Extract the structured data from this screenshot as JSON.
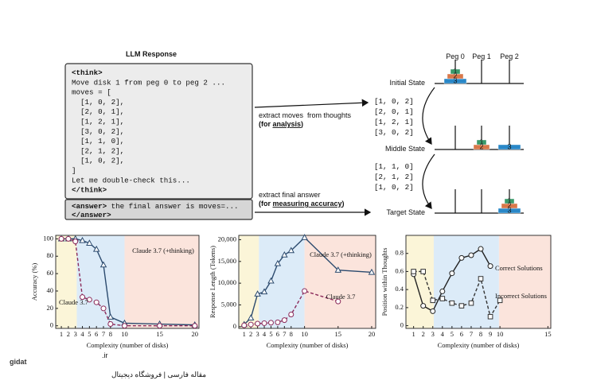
{
  "diagram": {
    "panel_title": "LLM Response",
    "code_lines": [
      {
        "text": "<think>",
        "color": "#111111",
        "bold": true
      },
      {
        "text": "Move disk 1 from peg 0 to peg 2 ...",
        "color": "#111111",
        "bold": false
      },
      {
        "text": "moves = [",
        "color": "#111111",
        "bold": false
      },
      {
        "text": "  [1, 0, 2],",
        "color": "#2e9a4a",
        "bold": false
      },
      {
        "text": "  [2, 0, 1],",
        "color": "#c8324a",
        "bold": false
      },
      {
        "text": "  [1, 2, 1],",
        "color": "#2a6fc8",
        "bold": false
      },
      {
        "text": "  [3, 0, 2],",
        "color": "#c8781e",
        "bold": false
      },
      {
        "text": "  [1, 1, 0],",
        "color": "#2a8ac8",
        "bold": false
      },
      {
        "text": "  [2, 1, 2],",
        "color": "#8a3ac0",
        "bold": false
      },
      {
        "text": "  [1, 0, 2],",
        "color": "#2e9a4a",
        "bold": false
      },
      {
        "text": "]",
        "color": "#111111",
        "bold": false
      },
      {
        "text": "Let me double-check this...",
        "color": "#111111",
        "bold": false
      },
      {
        "text": "</think>",
        "color": "#111111",
        "bold": true
      }
    ],
    "answer_lines": [
      [
        "<answer>",
        " the final answer is moves=..."
      ],
      [
        "</answer>"
      ]
    ],
    "extract_thoughts": {
      "line1": "extract moves  from thoughts",
      "line2": [
        "(for ",
        "analysis",
        ")"
      ]
    },
    "extract_answer": {
      "line1": "extract final answer",
      "line2": [
        "(for ",
        "measuring accuracy",
        ")"
      ]
    },
    "move_groups": [
      [
        {
          "text": "[1, 0, 2]",
          "color": "#2e9a4a"
        },
        {
          "text": "[2, 0, 1]",
          "color": "#c8324a"
        },
        {
          "text": "[1, 2, 1]",
          "color": "#2a6fc8"
        },
        {
          "text": "[3, 0, 2]",
          "color": "#c8781e"
        }
      ],
      [
        {
          "text": "[1, 1, 0]",
          "color": "#2a8ac8"
        },
        {
          "text": "[2, 1, 2]",
          "color": "#8a3ac0"
        },
        {
          "text": "[1, 0, 2]",
          "color": "#2e9a4a"
        }
      ]
    ],
    "pegs": [
      "Peg 0",
      "Peg 1",
      "Peg 2"
    ],
    "disk_colors": {
      "1": "#3a9a6a",
      "2": "#d8784a",
      "3": "#2a88c8"
    },
    "states": [
      {
        "label": "Initial State",
        "pegs": [
          [
            "3",
            "2",
            "1"
          ],
          [],
          []
        ]
      },
      {
        "label": "Middle State",
        "pegs": [
          [],
          [
            "2",
            "1"
          ],
          [
            "3"
          ]
        ]
      },
      {
        "label": "Target State",
        "pegs": [
          [],
          [],
          [
            "3",
            "2",
            "1"
          ]
        ]
      }
    ]
  },
  "chart_data": [
    {
      "type": "line",
      "xlabel": "Complexity (number of disks)",
      "ylabel": "Accuracy (%)",
      "x": [
        1,
        2,
        3,
        4,
        5,
        6,
        7,
        8,
        10,
        15,
        20
      ],
      "xlim": [
        0.2,
        20.6
      ],
      "xticks": [
        1,
        2,
        3,
        4,
        5,
        6,
        7,
        8,
        10,
        15,
        20
      ],
      "ylim": [
        -3,
        104
      ],
      "yticks": [
        0,
        20,
        40,
        60,
        80,
        100
      ],
      "regions": [
        {
          "xlim": [
            0.2,
            3.2
          ],
          "color": "#fbf5d8"
        },
        {
          "xlim": [
            3.2,
            10
          ],
          "color": "#dcebf8"
        },
        {
          "xlim": [
            10,
            20.6
          ],
          "color": "#fbe4dc"
        }
      ],
      "series": [
        {
          "name": "Claude 3.7 (+thinking)",
          "color": "#2b4a6e",
          "marker": "triangle",
          "dashed": false,
          "values": [
            100,
            100,
            100,
            98,
            95,
            88,
            70,
            10,
            3,
            2,
            1
          ]
        },
        {
          "name": "Claude 3.7",
          "color": "#8b2a5a",
          "marker": "circle",
          "dashed": true,
          "values": [
            100,
            100,
            97,
            33,
            30,
            27,
            20,
            2,
            0,
            0,
            0
          ]
        }
      ]
    },
    {
      "type": "line",
      "xlabel": "Complexity (number of disks)",
      "ylabel": "Response Length (Tokens)",
      "x": [
        1,
        2,
        3,
        4,
        5,
        6,
        7,
        8,
        10,
        15,
        20
      ],
      "xlim": [
        0.2,
        20.6
      ],
      "xticks": [
        1,
        2,
        3,
        4,
        5,
        6,
        7,
        8,
        10,
        15,
        20
      ],
      "ylim": [
        -400,
        21000
      ],
      "yticks": [
        0,
        {
          "value": 5000,
          "label": "5,000"
        },
        {
          "value": 10000,
          "label": "10,000"
        },
        {
          "value": 15000,
          "label": "15,000"
        },
        {
          "value": 20000,
          "label": "20,000"
        }
      ],
      "regions": [
        {
          "xlim": [
            0.2,
            3.2
          ],
          "color": "#fbf5d8"
        },
        {
          "xlim": [
            3.2,
            10
          ],
          "color": "#dcebf8"
        },
        {
          "xlim": [
            10,
            20.6
          ],
          "color": "#fbe4dc"
        }
      ],
      "series": [
        {
          "name": "Claude 3.7 (+thinking)",
          "color": "#2b4a6e",
          "marker": "triangle",
          "dashed": false,
          "values": [
            500,
            2000,
            7500,
            8000,
            10500,
            14500,
            16500,
            17500,
            20500,
            13000,
            12500
          ]
        },
        {
          "name": "Claude 3.7",
          "color": "#8b2a5a",
          "marker": "circle",
          "dashed": true,
          "values": [
            300,
            500,
            700,
            800,
            900,
            1000,
            1500,
            2800,
            8200,
            5800,
            null
          ]
        }
      ]
    },
    {
      "type": "line",
      "xlabel": "Complexity (number of disks)",
      "ylabel": "Position within Thoughts",
      "x": [
        1,
        2,
        3,
        4,
        5,
        6,
        7,
        8,
        9,
        10
      ],
      "xlim": [
        0.2,
        15.3
      ],
      "xticks": [
        1,
        2,
        3,
        4,
        5,
        6,
        7,
        8,
        9,
        10,
        15
      ],
      "ylim": [
        -0.03,
        1.0
      ],
      "yticks": [
        0,
        0.2,
        0.4,
        0.6,
        0.8
      ],
      "regions": [
        {
          "xlim": [
            0.2,
            3.1
          ],
          "color": "#fbf5d8"
        },
        {
          "xlim": [
            3.1,
            9.9
          ],
          "color": "#dcebf8"
        },
        {
          "xlim": [
            9.9,
            15.3
          ],
          "color": "#fbe4dc"
        }
      ],
      "series": [
        {
          "name": "Correct Solutions",
          "color": "#222222",
          "marker": "circle",
          "dashed": false,
          "values": [
            0.57,
            0.22,
            0.16,
            0.38,
            0.58,
            0.75,
            0.78,
            0.85,
            0.66,
            null
          ]
        },
        {
          "name": "Incorrect Solutions",
          "color": "#333333",
          "marker": "square",
          "dashed": true,
          "values": [
            0.6,
            0.6,
            0.28,
            0.3,
            0.25,
            0.22,
            0.25,
            0.52,
            0.1,
            0.28
          ]
        }
      ]
    }
  ],
  "watermark": {
    "brand": "gidat",
    "tld": ".ir",
    "tagline": "مقاله فارسی | فروشگاه دیجیتال"
  }
}
